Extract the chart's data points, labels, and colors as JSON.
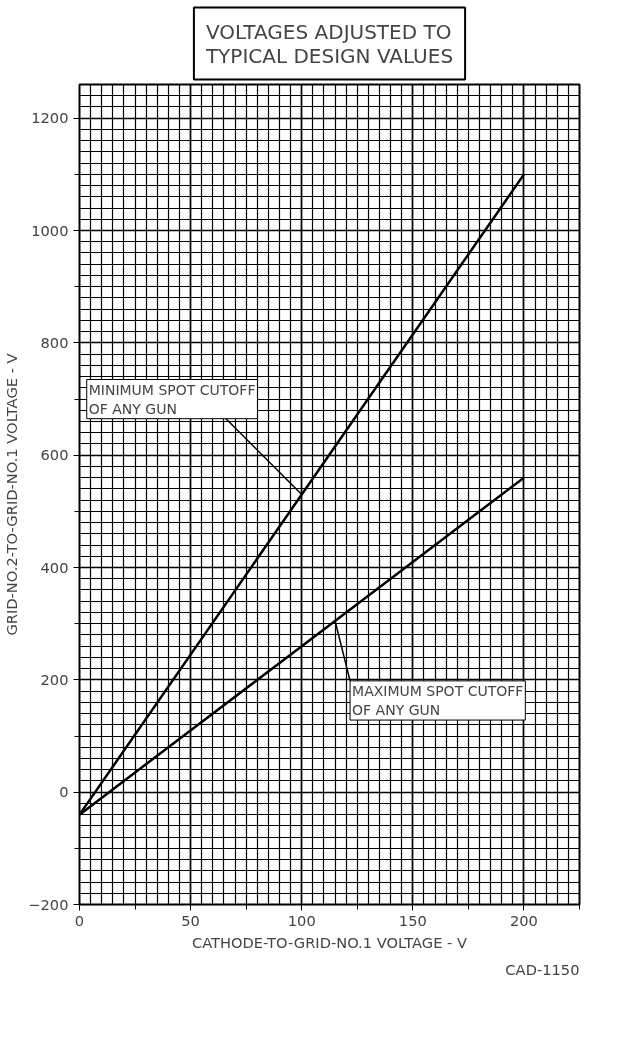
{
  "chart_data": {
    "type": "line",
    "title": "VOLTAGES ADJUSTED TO TYPICAL DESIGN VALUES",
    "xlabel": "CATHODE-TO-GRID-NO.1 VOLTAGE - V",
    "ylabel": "GRID-NO.2-TO-GRID-NO.1 VOLTAGE - V",
    "x": [
      0,
      100,
      200
    ],
    "series": [
      {
        "color": "#000000",
        "values": [
          -40,
          530,
          1100
        ]
      },
      {
        "color": "#000000",
        "values": [
          -40,
          260,
          560
        ]
      }
    ],
    "xlim": [
      0,
      225
    ],
    "ylim": [
      -200,
      1260
    ],
    "xticks": [
      0,
      50,
      100,
      150,
      200
    ],
    "yticks": [
      -200,
      0,
      200,
      400,
      600,
      800,
      1000,
      1200
    ],
    "grid": true,
    "marker": "none",
    "line_style": "solid",
    "annotations": [
      {
        "text": "MINIMUM SPOT CUTOFF OF ANY GUN",
        "x": 100,
        "y": 530
      },
      {
        "text": "MAXIMUM SPOT CUTOFF OF ANY GUN",
        "x": 115,
        "y": 305
      },
      "CAD-1150"
    ]
  }
}
